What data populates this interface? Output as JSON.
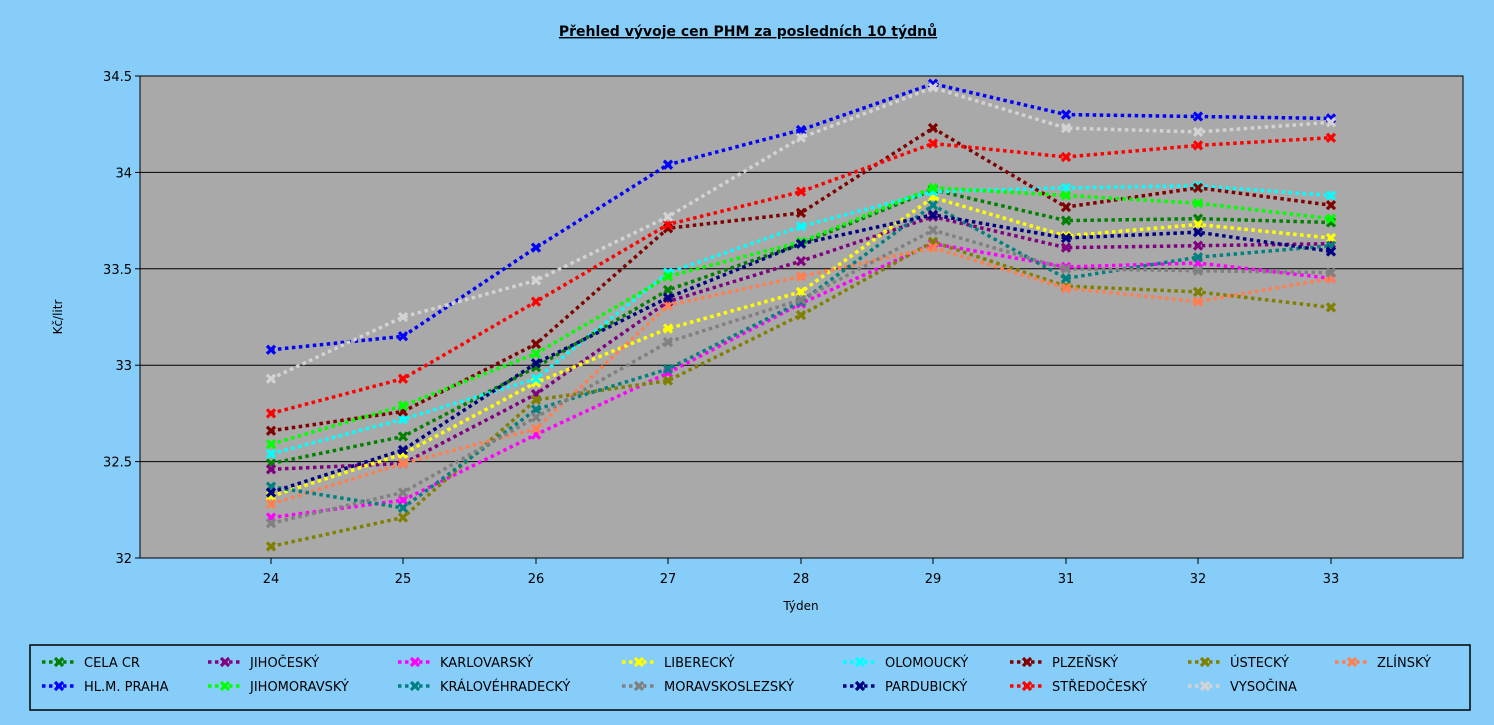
{
  "chart_data": {
    "type": "line",
    "title": "Přehled vývoje cen PHM za posledních 10 týdnů",
    "xlabel": "Týden",
    "ylabel": "Kč/litr",
    "categories": [
      "24",
      "25",
      "26",
      "27",
      "28",
      "29",
      "31",
      "32",
      "33"
    ],
    "ylim": [
      32,
      34.5
    ],
    "yticks": [
      "32",
      "32.5",
      "33",
      "33.5",
      "34",
      "34.5"
    ],
    "grid": true,
    "legend_placement": "bottom",
    "series": [
      {
        "name": "CELA CR",
        "color": "#008000",
        "values": [
          32.49,
          32.63,
          32.99,
          33.39,
          33.63,
          33.91,
          33.75,
          33.76,
          33.74
        ]
      },
      {
        "name": "JIHOČESKÝ",
        "color": "#800080",
        "values": [
          32.46,
          32.49,
          32.85,
          33.33,
          33.54,
          33.77,
          33.61,
          33.62,
          33.63
        ]
      },
      {
        "name": "KARLOVARSKÝ",
        "color": "#ff00ff",
        "values": [
          32.21,
          32.3,
          32.64,
          32.96,
          33.32,
          33.63,
          33.51,
          33.53,
          33.45
        ]
      },
      {
        "name": "LIBERECKÝ",
        "color": "#ffff00",
        "values": [
          32.32,
          32.54,
          32.91,
          33.19,
          33.38,
          33.87,
          33.67,
          33.73,
          33.66
        ]
      },
      {
        "name": "OLOMOUCKÝ",
        "color": "#00ffff",
        "values": [
          32.54,
          32.72,
          32.93,
          33.48,
          33.72,
          33.9,
          33.92,
          33.93,
          33.88
        ]
      },
      {
        "name": "PLZEŇSKÝ",
        "color": "#800000",
        "values": [
          32.66,
          32.76,
          33.11,
          33.71,
          33.79,
          34.23,
          33.82,
          33.92,
          33.83
        ]
      },
      {
        "name": "ÚSTECKÝ",
        "color": "#808000",
        "values": [
          32.06,
          32.21,
          32.82,
          32.92,
          33.26,
          33.64,
          33.41,
          33.38,
          33.3
        ]
      },
      {
        "name": "ZLÍNSKÝ",
        "color": "#ff7f50",
        "values": [
          32.28,
          32.49,
          32.67,
          33.31,
          33.46,
          33.61,
          33.4,
          33.33,
          33.45
        ]
      },
      {
        "name": "HL.M. PRAHA",
        "color": "#0000ff",
        "values": [
          33.08,
          33.15,
          33.61,
          34.04,
          34.22,
          34.46,
          34.3,
          34.29,
          34.28
        ]
      },
      {
        "name": "JIHOMORAVSKÝ",
        "color": "#00ff00",
        "values": [
          32.59,
          32.79,
          33.06,
          33.46,
          33.64,
          33.92,
          33.88,
          33.84,
          33.76
        ]
      },
      {
        "name": "KRÁLOVÉHRADECKÝ",
        "color": "#008080",
        "values": [
          32.37,
          32.26,
          32.77,
          32.98,
          33.33,
          33.83,
          33.45,
          33.56,
          33.62
        ]
      },
      {
        "name": "MORAVSKOSLEZSKÝ",
        "color": "#808080",
        "values": [
          32.18,
          32.34,
          32.73,
          33.12,
          33.34,
          33.7,
          33.5,
          33.49,
          33.48
        ]
      },
      {
        "name": "PARDUBICKÝ",
        "color": "#000080",
        "values": [
          32.34,
          32.56,
          33.01,
          33.35,
          33.63,
          33.78,
          33.66,
          33.69,
          33.59
        ]
      },
      {
        "name": "STŘEDOČESKÝ",
        "color": "#ff0000",
        "values": [
          32.75,
          32.93,
          33.33,
          33.73,
          33.9,
          34.15,
          34.08,
          34.14,
          34.18
        ]
      },
      {
        "name": "VYSOČINA",
        "color": "#d3d3d3",
        "values": [
          32.93,
          33.25,
          33.44,
          33.77,
          34.18,
          34.44,
          34.23,
          34.21,
          34.26
        ]
      }
    ]
  }
}
